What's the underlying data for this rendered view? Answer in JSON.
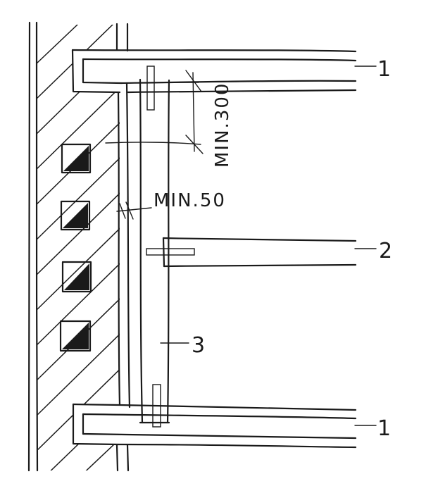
{
  "labels": {
    "top_beam": "1",
    "middle_beam": "2",
    "post": "3",
    "bottom_beam": "1"
  },
  "dimensions": {
    "vertical_spacing": "MIN.300",
    "gap_to_wall": "MIN.50"
  },
  "ink_color": "#1a1a1a"
}
